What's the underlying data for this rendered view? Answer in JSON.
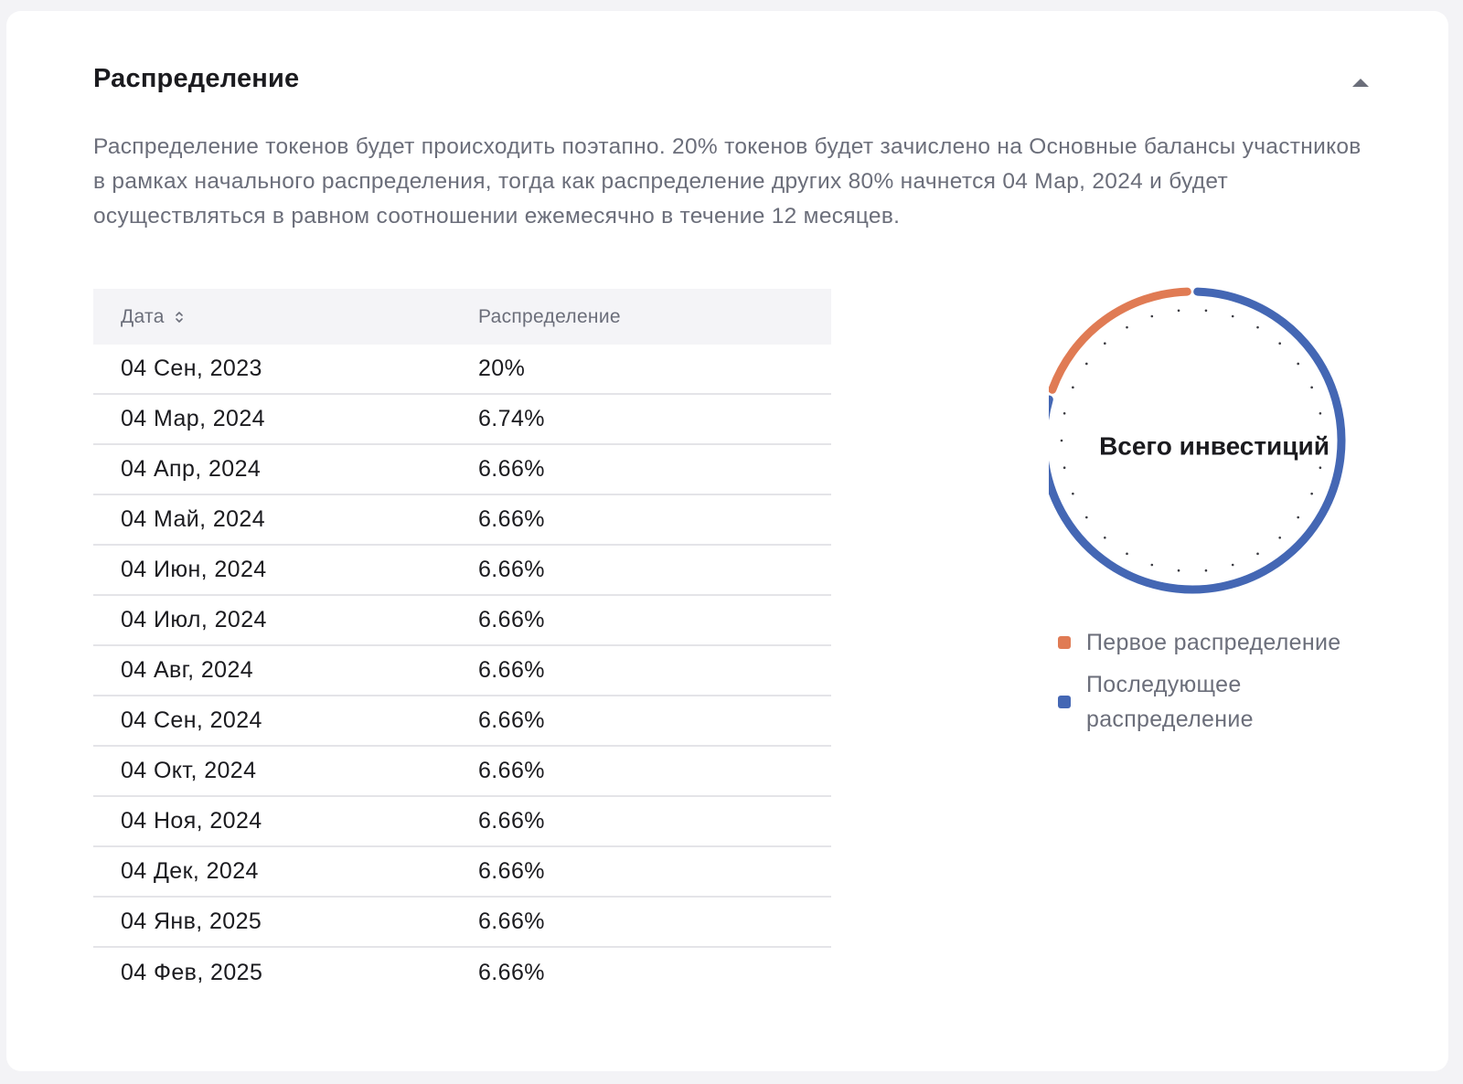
{
  "section": {
    "title": "Распределение",
    "description": "Распределение токенов будет происходить поэтапно. 20% токенов будет зачислено на Основные балансы участников в рамках начального распределения, тогда как распределение других 80% начнется 04 Мар, 2024 и будет осуществляться в равном соотношении ежемесячно в течение 12 месяцев."
  },
  "icons": {
    "collapse": "caret-up-icon",
    "sort": "sort-arrows-icon"
  },
  "table": {
    "headers": {
      "date": "Дата",
      "distribution": "Распределение"
    },
    "rows": [
      {
        "date": "04 Сен, 2023",
        "value": "20%"
      },
      {
        "date": "04 Мар, 2024",
        "value": "6.74%"
      },
      {
        "date": "04 Апр, 2024",
        "value": "6.66%"
      },
      {
        "date": "04 Май, 2024",
        "value": "6.66%"
      },
      {
        "date": "04 Июн, 2024",
        "value": "6.66%"
      },
      {
        "date": "04 Июл, 2024",
        "value": "6.66%"
      },
      {
        "date": "04 Авг, 2024",
        "value": "6.66%"
      },
      {
        "date": "04 Сен, 2024",
        "value": "6.66%"
      },
      {
        "date": "04 Окт, 2024",
        "value": "6.66%"
      },
      {
        "date": "04 Ноя, 2024",
        "value": "6.66%"
      },
      {
        "date": "04 Дек, 2024",
        "value": "6.66%"
      },
      {
        "date": "04 Янв, 2025",
        "value": "6.66%"
      },
      {
        "date": "04 Фев, 2025",
        "value": "6.66%"
      }
    ]
  },
  "chart_data": {
    "type": "pie",
    "title": "Всего инвестиций",
    "series": [
      {
        "name": "Первое распределение",
        "value": 20,
        "color": "#e07b54"
      },
      {
        "name": "Последующее распределение",
        "value": 80,
        "color": "#4467b4"
      }
    ],
    "legend_position": "bottom"
  },
  "legend": {
    "first": "Первое распределение",
    "subsequent": "Последующее распределение"
  },
  "colors": {
    "first": "#e07b54",
    "subsequent": "#4467b4",
    "text_primary": "#1b1b1f",
    "text_secondary": "#6b6e7a"
  }
}
